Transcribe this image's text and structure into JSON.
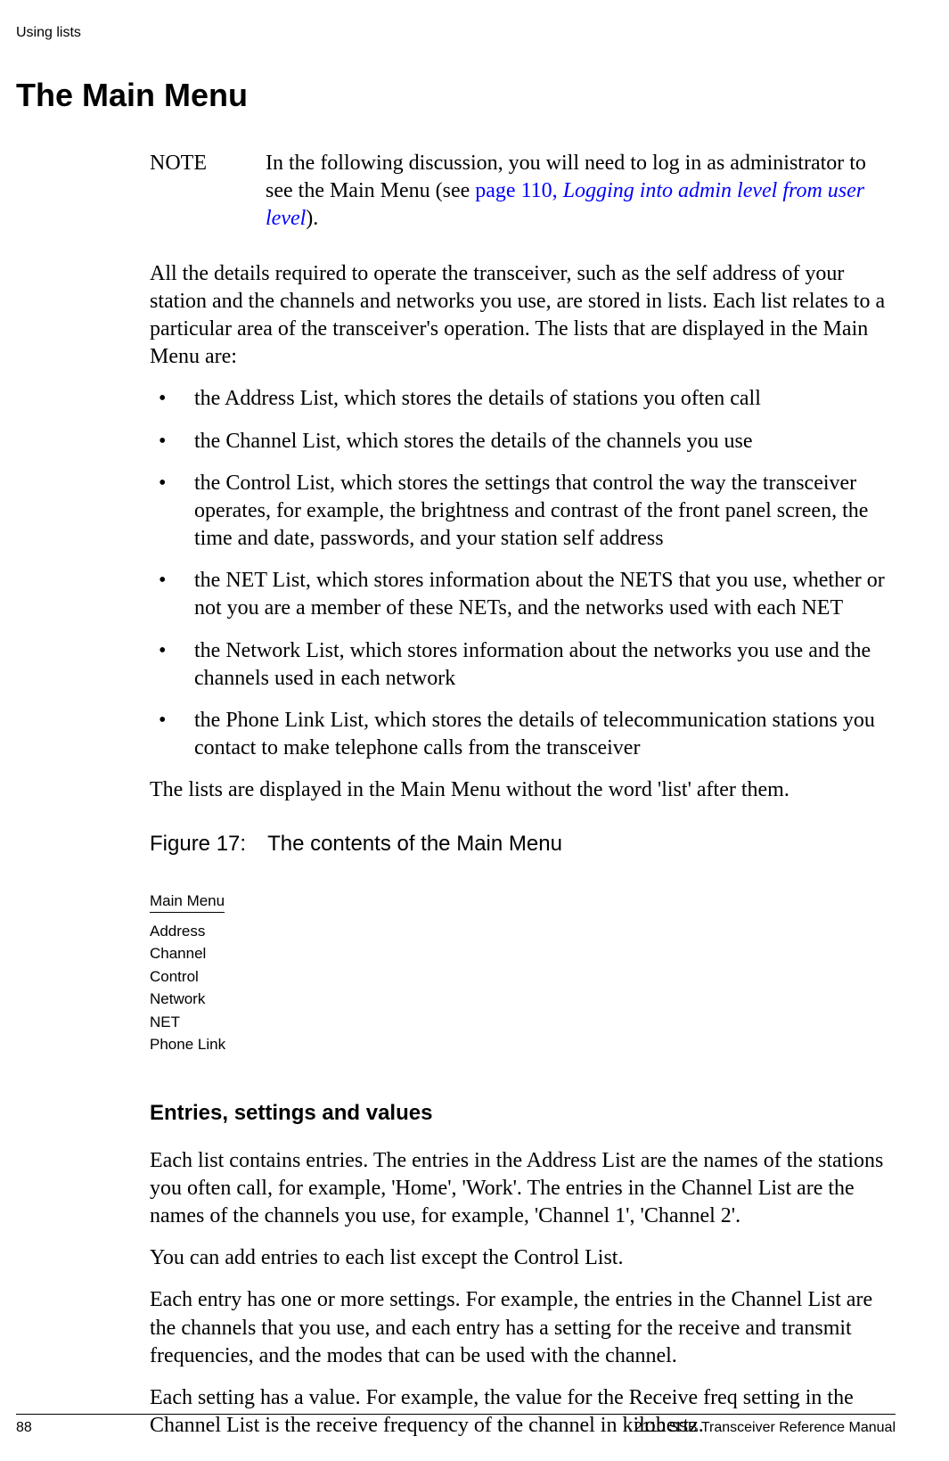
{
  "header": {
    "running_head": "Using lists"
  },
  "title": "The Main Menu",
  "note": {
    "label": "NOTE",
    "pre": "In the following discussion, you will need to log in as administrator to see the Main Menu (see ",
    "link1": "page 110, ",
    "link2": "Logging into admin level from user level",
    "post": ")."
  },
  "intro": "All the details required to operate the transceiver, such as the self address of your station and the channels and networks you use, are stored in lists. Each list relates to a particular area of the transceiver's operation. The lists that are displayed in the Main Menu are:",
  "bullets": [
    "the Address List, which stores the details of stations you often call",
    "the Channel List, which stores the details of the channels you use",
    "the Control List, which stores the settings that control the way the transceiver operates, for example, the brightness and contrast of the front panel screen, the time and date, passwords, and your station self address",
    "the NET List, which stores information about the NETS that you use, whether or not you are a member of these NETs, and the networks used with each NET",
    "the Network List, which stores information about the networks you use and the channels used in each network",
    "the Phone Link List, which stores the details of telecommunication stations you contact to make telephone calls from the transceiver"
  ],
  "after_bullets": "The lists are displayed in the Main Menu without the word 'list' after them.",
  "figure": {
    "caption_prefix": "Figure 17: ",
    "caption": "The contents of the Main Menu",
    "menu_title": "Main Menu",
    "items": [
      "Address",
      "Channel",
      "Control",
      "Network",
      "NET",
      "Phone Link"
    ]
  },
  "subheading": "Entries, settings and values",
  "paras": [
    "Each list contains entries. The entries in the Address List are the names of the stations you often call, for example, 'Home', 'Work'. The entries in the Channel List are the names of the channels you use, for example, 'Channel 1', 'Channel 2'.",
    "You can add entries to each list except the Control List.",
    "Each entry has one or more settings. For example, the entries in the Channel List are the channels that you use, and each entry has a setting for the receive and transmit frequencies, and the modes that can be used with the channel.",
    "Each setting has a value. For example, the value for the Receive freq setting in the Channel List is the receive frequency of the channel in kilohertz."
  ],
  "footer": {
    "page": "88",
    "doc": "2110 SSB Transceiver Reference Manual"
  }
}
